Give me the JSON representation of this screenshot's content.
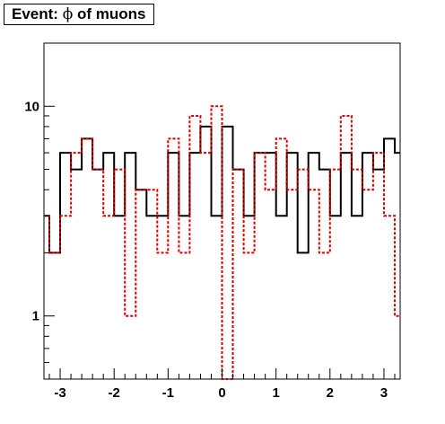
{
  "title": {
    "prefix": "Event: ",
    "symbol": "ϕ",
    "suffix": " of muons"
  },
  "colors": {
    "series_black": "#000000",
    "series_red": "#d40000",
    "frame": "#000000",
    "background": "#ffffff"
  },
  "chart_data": {
    "type": "line",
    "style": "step-histogram",
    "title": "Event: ϕ of muons",
    "xlabel": "",
    "ylabel": "",
    "xlim": [
      -3.3,
      3.3
    ],
    "ylim": [
      0.5,
      20
    ],
    "y_scale": "log",
    "grid": false,
    "legend": "none",
    "x_ticks": [
      {
        "value": -3,
        "label": "-3"
      },
      {
        "value": -2,
        "label": "-2"
      },
      {
        "value": -1,
        "label": "-1"
      },
      {
        "value": 0,
        "label": "0"
      },
      {
        "value": 1,
        "label": "1"
      },
      {
        "value": 2,
        "label": "2"
      },
      {
        "value": 3,
        "label": "3"
      }
    ],
    "y_ticks": [
      {
        "value": 1,
        "label": "1"
      },
      {
        "value": 10,
        "label": "10"
      }
    ],
    "bin_edges": [
      -3.3,
      -3.2,
      -3.0,
      -2.8,
      -2.6,
      -2.4,
      -2.2,
      -2.0,
      -1.8,
      -1.6,
      -1.4,
      -1.2,
      -1.0,
      -0.8,
      -0.6,
      -0.4,
      -0.2,
      0.0,
      0.2,
      0.4,
      0.6,
      0.8,
      1.0,
      1.2,
      1.4,
      1.6,
      1.8,
      2.0,
      2.2,
      2.4,
      2.6,
      2.8,
      3.0,
      3.2,
      3.3
    ],
    "series": [
      {
        "color": "#000000",
        "line": "solid",
        "values": [
          3,
          2,
          6,
          5,
          7,
          5,
          6,
          3,
          6,
          4,
          3,
          3,
          6,
          3,
          6,
          8,
          3,
          8,
          5,
          3,
          6,
          6,
          3,
          6,
          2,
          6,
          5,
          3,
          6,
          3,
          6,
          5,
          7,
          6
        ]
      },
      {
        "color": "#d40000",
        "line": "dotted",
        "values": [
          3,
          2,
          3,
          6,
          7,
          5,
          3,
          5,
          1,
          4,
          4,
          2,
          7,
          2,
          9,
          6,
          10,
          0.1,
          5,
          2,
          6,
          4,
          7,
          4,
          5,
          4,
          2,
          5,
          9,
          5,
          4,
          6,
          3,
          1
        ]
      }
    ]
  }
}
